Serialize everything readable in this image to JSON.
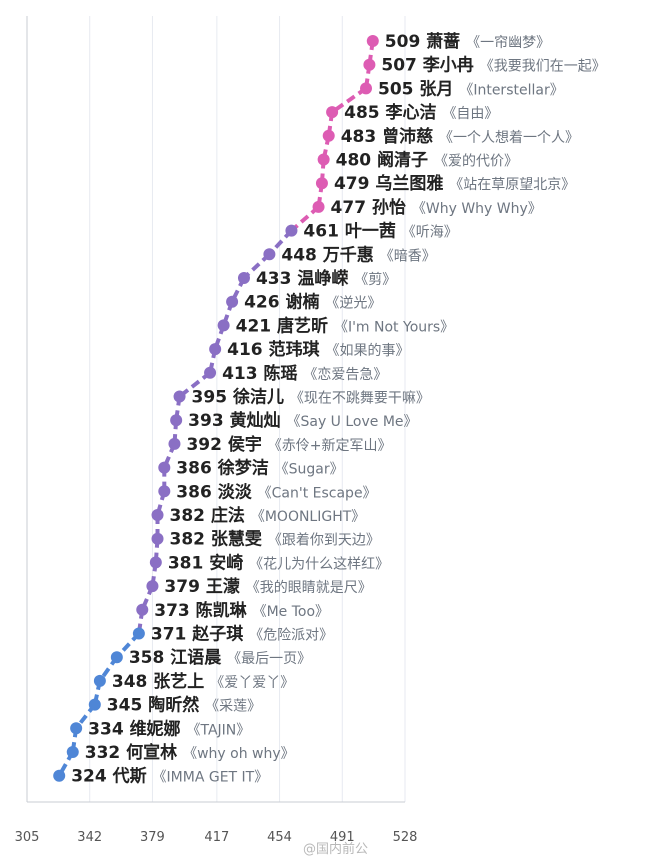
{
  "chart_data": {
    "type": "line",
    "xlim": [
      305,
      528
    ],
    "x_ticks": [
      "305",
      "342",
      "379",
      "417",
      "454",
      "491",
      "528"
    ],
    "grid": true,
    "colors": {
      "top": "#dd5cb3",
      "middle": "#8a6fc4",
      "bottom": "#4f86d6"
    },
    "points": [
      {
        "score": 509,
        "name": "萧蔷",
        "song": "《一帘幽梦》"
      },
      {
        "score": 507,
        "name": "李小冉",
        "song": "《我要我们在一起》"
      },
      {
        "score": 505,
        "name": "张月",
        "song": "《Interstellar》"
      },
      {
        "score": 485,
        "name": "李心洁",
        "song": "《自由》"
      },
      {
        "score": 483,
        "name": "曾沛慈",
        "song": "《一个人想着一个人》"
      },
      {
        "score": 480,
        "name": "阚清子",
        "song": "《爱的代价》"
      },
      {
        "score": 479,
        "name": "乌兰图雅",
        "song": "《站在草原望北京》"
      },
      {
        "score": 477,
        "name": "孙怡",
        "song": "《Why Why Why》"
      },
      {
        "score": 461,
        "name": "叶一茜",
        "song": "《听海》"
      },
      {
        "score": 448,
        "name": "万千惠",
        "song": "《暗香》"
      },
      {
        "score": 433,
        "name": "温峥嵘",
        "song": "《剪》"
      },
      {
        "score": 426,
        "name": "谢楠",
        "song": "《逆光》"
      },
      {
        "score": 421,
        "name": "唐艺昕",
        "song": "《I'm Not Yours》"
      },
      {
        "score": 416,
        "name": "范玮琪",
        "song": "《如果的事》"
      },
      {
        "score": 413,
        "name": "陈瑶",
        "song": "《恋爱告急》"
      },
      {
        "score": 395,
        "name": "徐洁儿",
        "song": "《现在不跳舞要干嘛》"
      },
      {
        "score": 393,
        "name": "黄灿灿",
        "song": "《Say U Love Me》"
      },
      {
        "score": 392,
        "name": "侯宇",
        "song": "《赤伶+新定军山》"
      },
      {
        "score": 386,
        "name": "徐梦洁",
        "song": "《Sugar》"
      },
      {
        "score": 386,
        "name": "淡淡",
        "song": "《Can't Escape》"
      },
      {
        "score": 382,
        "name": "庄法",
        "song": "《MOONLIGHT》"
      },
      {
        "score": 382,
        "name": "张慧雯",
        "song": "《跟着你到天边》"
      },
      {
        "score": 381,
        "name": "安崎",
        "song": "《花儿为什么这样红》"
      },
      {
        "score": 379,
        "name": "王濛",
        "song": "《我的眼睛就是尺》"
      },
      {
        "score": 373,
        "name": "陈凯琳",
        "song": "《Me Too》"
      },
      {
        "score": 371,
        "name": "赵子琪",
        "song": "《危险派对》"
      },
      {
        "score": 358,
        "name": "江语晨",
        "song": "《最后一页》"
      },
      {
        "score": 348,
        "name": "张艺上",
        "song": "《爱丫爱丫》"
      },
      {
        "score": 345,
        "name": "陶昕然",
        "song": "《采莲》"
      },
      {
        "score": 334,
        "name": "维妮娜",
        "song": "《TAJIN》"
      },
      {
        "score": 332,
        "name": "何宣林",
        "song": "《why oh why》"
      },
      {
        "score": 324,
        "name": "代斯",
        "song": "《IMMA GET IT》"
      }
    ]
  },
  "watermark": "@国内前公"
}
